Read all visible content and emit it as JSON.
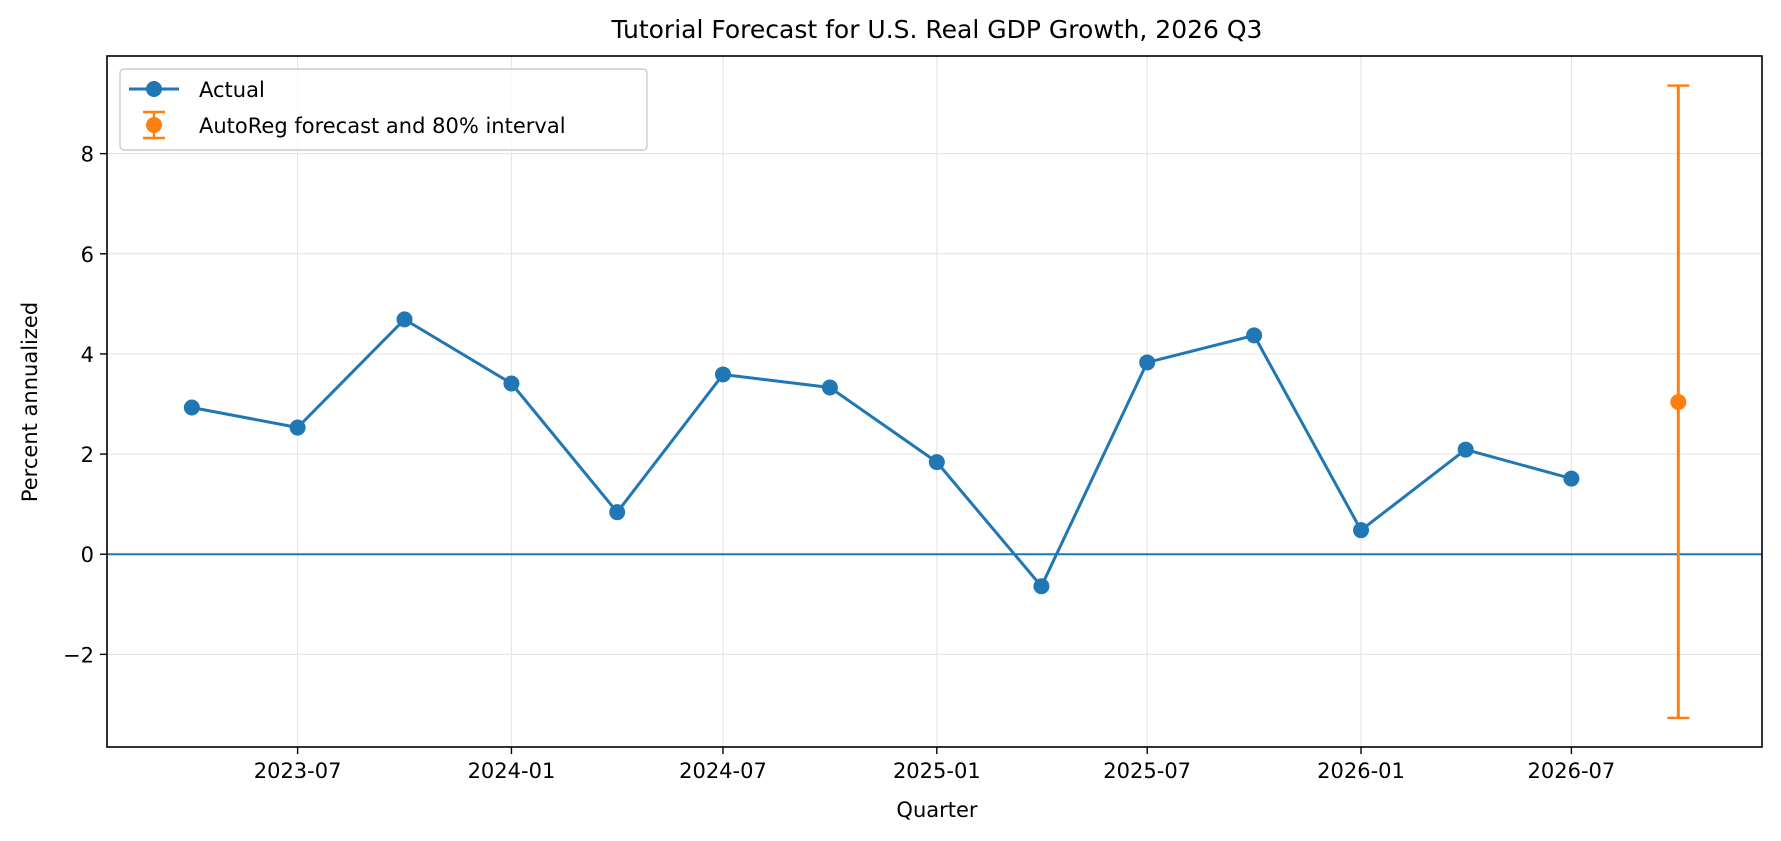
{
  "chart_data": {
    "type": "line",
    "title": "Tutorial Forecast for U.S. Real GDP Growth, 2026 Q3",
    "xlabel": "Quarter",
    "ylabel": "Percent annualized",
    "x_range": [
      "2023-01-18",
      "2026-12-12"
    ],
    "ylim": [
      -3.85,
      9.95
    ],
    "x_ticks": [
      "2023-07",
      "2024-01",
      "2024-07",
      "2025-01",
      "2025-07",
      "2026-01",
      "2026-07"
    ],
    "y_ticks": [
      -2,
      0,
      2,
      4,
      6,
      8
    ],
    "grid": true,
    "legend_position": "upper-left",
    "zero_line": 0,
    "series": [
      {
        "name": "Actual",
        "color": "#1f77b4",
        "marker": "circle",
        "x": [
          "2023-04-01",
          "2023-07-01",
          "2023-10-01",
          "2024-01-01",
          "2024-04-01",
          "2024-07-01",
          "2024-10-01",
          "2025-01-01",
          "2025-04-01",
          "2025-07-01",
          "2025-10-01",
          "2026-01-01",
          "2026-04-01",
          "2026-07-01"
        ],
        "y": [
          2.93,
          2.53,
          4.69,
          3.41,
          0.84,
          3.59,
          3.33,
          1.84,
          -0.64,
          3.83,
          4.37,
          0.48,
          2.09,
          1.51
        ]
      }
    ],
    "forecast": {
      "name": "AutoReg forecast and 80% interval",
      "color": "#ff7f0e",
      "x": "2026-10-01",
      "y": 3.04,
      "lower": -3.27,
      "upper": 9.36
    }
  }
}
